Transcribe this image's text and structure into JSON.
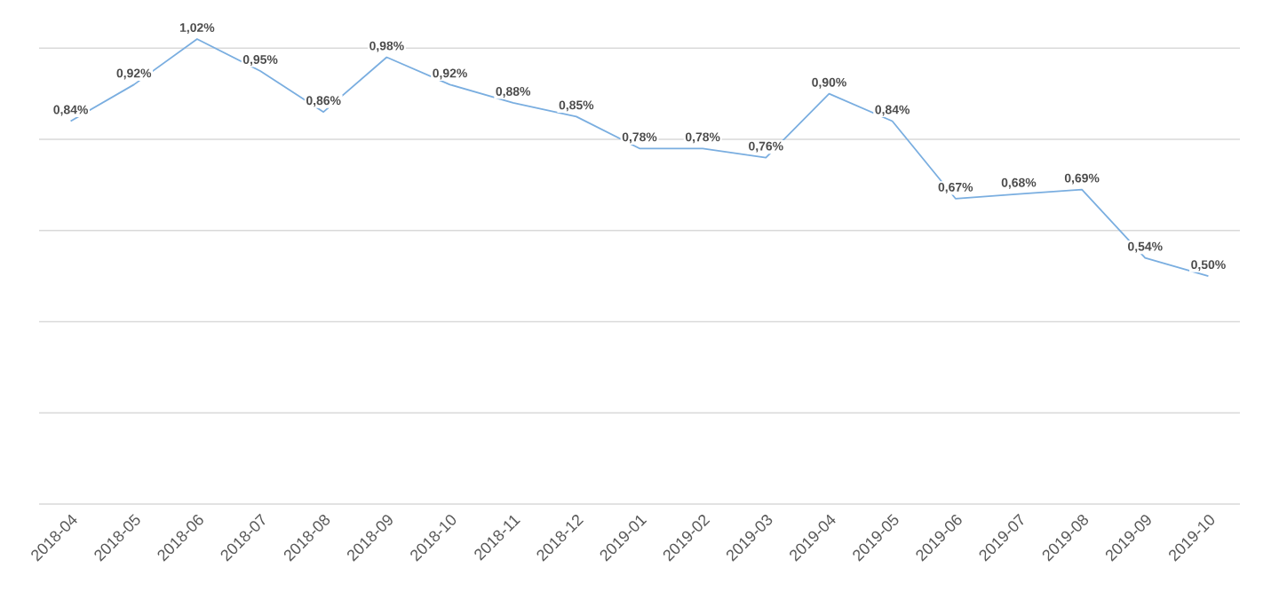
{
  "chart_data": {
    "type": "line",
    "categories": [
      "2018-04",
      "2018-05",
      "2018-06",
      "2018-07",
      "2018-08",
      "2018-09",
      "2018-10",
      "2018-11",
      "2018-12",
      "2019-01",
      "2019-02",
      "2019-03",
      "2019-04",
      "2019-05",
      "2019-06",
      "2019-07",
      "2019-08",
      "2019-09",
      "2019-10"
    ],
    "series": [
      {
        "color": "#7aaee0",
        "values": [
          0.84,
          0.92,
          1.02,
          0.95,
          0.86,
          0.98,
          0.92,
          0.88,
          0.85,
          0.78,
          0.78,
          0.76,
          0.9,
          0.84,
          0.67,
          0.68,
          0.69,
          0.54,
          0.5
        ],
        "value_labels": [
          "0,84%",
          "0,92%",
          "1,02%",
          "0,95%",
          "0,86%",
          "0,98%",
          "0,92%",
          "0,88%",
          "0,85%",
          "0,78%",
          "0,78%",
          "0,76%",
          "0,90%",
          "0,84%",
          "0,67%",
          "0,68%",
          "0,69%",
          "0,54%",
          "0,50%"
        ]
      }
    ],
    "yticks": [
      {
        "value": 0,
        "label": null
      },
      {
        "value": 0.2,
        "label": null
      },
      {
        "value": 0.4,
        "label": null
      },
      {
        "value": 0.6,
        "label": null
      },
      {
        "value": 0.8,
        "label": null
      },
      {
        "value": 1.0,
        "label": null
      }
    ],
    "grid": "y",
    "tick_labels": "x",
    "marker": "none",
    "line_style": "solid"
  }
}
